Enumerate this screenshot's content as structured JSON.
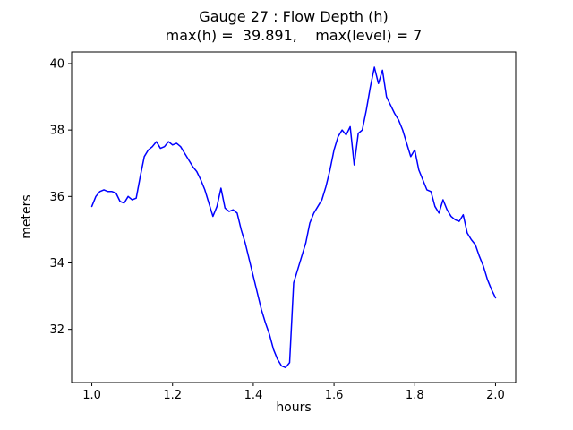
{
  "figure": {
    "title": "Gauge 27 : Flow Depth (h)",
    "subtitle": "max(h) =  39.891,    max(level) = 7",
    "xlabel": "hours",
    "ylabel": "meters"
  },
  "chart_data": {
    "type": "line",
    "title": "Gauge 27 : Flow Depth (h)",
    "subtitle": "max(h) = 39.891, max(level) = 7",
    "xlabel": "hours",
    "ylabel": "meters",
    "xlim": [
      0.95,
      2.05
    ],
    "ylim": [
      30.4,
      40.35
    ],
    "xticks": [
      1.0,
      1.2,
      1.4,
      1.6,
      1.8,
      2.0
    ],
    "xtick_labels": [
      "1.0",
      "1.2",
      "1.4",
      "1.6",
      "1.8",
      "2.0"
    ],
    "yticks": [
      32,
      34,
      36,
      38,
      40
    ],
    "ytick_labels": [
      "32",
      "34",
      "36",
      "38",
      "40"
    ],
    "grid": false,
    "legend": "none",
    "line_color": "#0000ff",
    "line_width": 1.5,
    "annotations": {
      "max_h": 39.891,
      "max_level": 7
    },
    "series": [
      {
        "name": "h",
        "x": [
          1.0,
          1.01,
          1.02,
          1.03,
          1.04,
          1.05,
          1.06,
          1.07,
          1.08,
          1.09,
          1.1,
          1.11,
          1.12,
          1.13,
          1.14,
          1.15,
          1.16,
          1.17,
          1.18,
          1.19,
          1.2,
          1.21,
          1.22,
          1.23,
          1.24,
          1.25,
          1.26,
          1.27,
          1.28,
          1.29,
          1.3,
          1.31,
          1.32,
          1.33,
          1.34,
          1.35,
          1.36,
          1.37,
          1.38,
          1.39,
          1.4,
          1.41,
          1.42,
          1.43,
          1.44,
          1.45,
          1.46,
          1.47,
          1.48,
          1.49,
          1.5,
          1.51,
          1.52,
          1.53,
          1.54,
          1.55,
          1.56,
          1.57,
          1.58,
          1.59,
          1.6,
          1.61,
          1.62,
          1.63,
          1.64,
          1.65,
          1.66,
          1.67,
          1.68,
          1.69,
          1.7,
          1.71,
          1.72,
          1.73,
          1.74,
          1.75,
          1.76,
          1.77,
          1.78,
          1.79,
          1.8,
          1.81,
          1.82,
          1.83,
          1.84,
          1.85,
          1.86,
          1.87,
          1.88,
          1.89,
          1.9,
          1.91,
          1.92,
          1.93,
          1.94,
          1.95,
          1.96,
          1.97,
          1.98,
          1.99,
          2.0
        ],
        "y": [
          35.7,
          36.0,
          36.15,
          36.2,
          36.15,
          36.15,
          36.1,
          35.85,
          35.8,
          36.0,
          35.9,
          35.95,
          36.6,
          37.2,
          37.4,
          37.5,
          37.65,
          37.45,
          37.5,
          37.65,
          37.55,
          37.6,
          37.5,
          37.3,
          37.1,
          36.9,
          36.75,
          36.5,
          36.2,
          35.8,
          35.4,
          35.7,
          36.25,
          35.65,
          35.55,
          35.6,
          35.5,
          35.0,
          34.6,
          34.1,
          33.6,
          33.1,
          32.6,
          32.2,
          31.85,
          31.4,
          31.1,
          30.9,
          30.85,
          31.0,
          33.4,
          33.8,
          34.2,
          34.6,
          35.2,
          35.5,
          35.7,
          35.9,
          36.3,
          36.8,
          37.4,
          37.8,
          38.0,
          37.85,
          38.1,
          36.95,
          37.9,
          38.0,
          38.6,
          39.3,
          39.891,
          39.4,
          39.8,
          39.0,
          38.75,
          38.5,
          38.3,
          38.0,
          37.6,
          37.2,
          37.4,
          36.8,
          36.5,
          36.2,
          36.15,
          35.7,
          35.5,
          35.9,
          35.6,
          35.4,
          35.3,
          35.25,
          35.45,
          34.9,
          34.7,
          34.55,
          34.2,
          33.9,
          33.5,
          33.2,
          32.95
        ]
      }
    ]
  }
}
